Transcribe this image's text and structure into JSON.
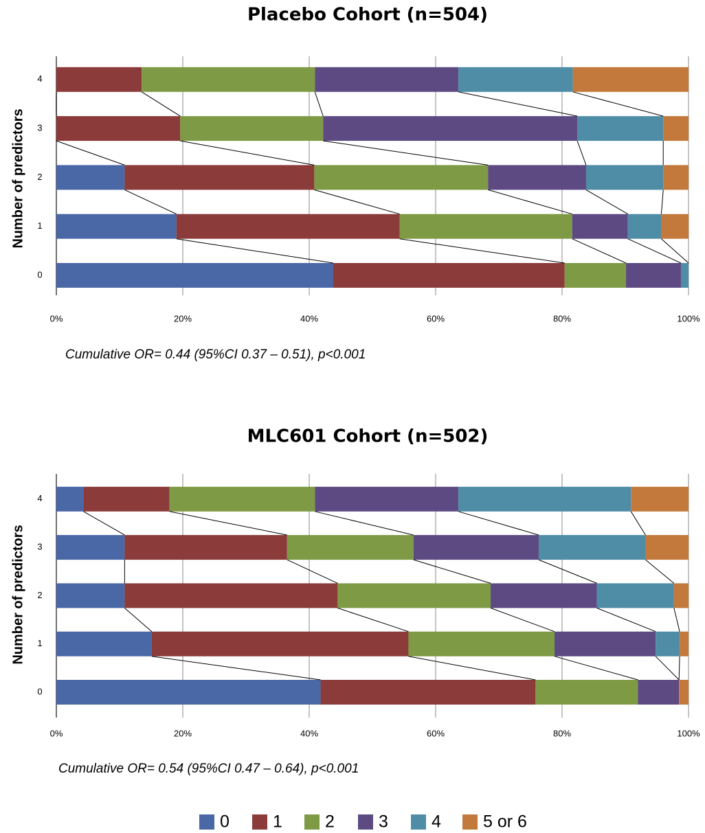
{
  "chart_data": [
    {
      "type": "stacked-bar-100",
      "title": "Placebo Cohort (n=504)",
      "y_label": "Number of predictors",
      "annotation": "Cumulative OR= 0.44 (95%CI 0.37 – 0.51), p<0.001",
      "categories": [
        "0",
        "1",
        "2",
        "3",
        "4"
      ],
      "series": [
        {
          "name": "0",
          "color": "#4a67a6",
          "values": [
            43.8,
            19.0,
            10.8,
            0,
            0
          ]
        },
        {
          "name": "1",
          "color": "#8a3b3a",
          "values": [
            36.6,
            35.3,
            30.0,
            19.6,
            13.5
          ]
        },
        {
          "name": "2",
          "color": "#7f9a45",
          "values": [
            9.7,
            27.3,
            27.5,
            22.6,
            27.4
          ]
        },
        {
          "name": "3",
          "color": "#5d4a82",
          "values": [
            8.7,
            8.8,
            15.5,
            40.2,
            22.7
          ]
        },
        {
          "name": "4",
          "color": "#4f8ca6",
          "values": [
            1.2,
            5.3,
            12.2,
            13.6,
            18.1
          ]
        },
        {
          "name": "5 or 6",
          "color": "#c2793b",
          "values": [
            0,
            4.3,
            4.0,
            4.0,
            18.3
          ]
        }
      ],
      "xlim": [
        0,
        100
      ],
      "xticks": [
        {
          "value": 0,
          "label": "0%"
        },
        {
          "value": 20,
          "label": "20%"
        },
        {
          "value": 40,
          "label": "40%"
        },
        {
          "value": 60,
          "label": "60%"
        },
        {
          "value": 80,
          "label": "80%"
        },
        {
          "value": 100,
          "label": "100%"
        }
      ],
      "grid": true
    },
    {
      "type": "stacked-bar-100",
      "title": "MLC601 Cohort (n=502)",
      "y_label": "Number of predictors",
      "annotation": "Cumulative OR= 0.54 (95%CI 0.47 – 0.64), p<0.001",
      "categories": [
        "0",
        "1",
        "2",
        "3",
        "4"
      ],
      "series": [
        {
          "name": "0",
          "color": "#4a67a6",
          "values": [
            41.8,
            15.1,
            10.8,
            10.8,
            4.3
          ]
        },
        {
          "name": "1",
          "color": "#8a3b3a",
          "values": [
            34.0,
            40.6,
            33.7,
            25.7,
            13.6
          ]
        },
        {
          "name": "2",
          "color": "#7f9a45",
          "values": [
            16.2,
            23.1,
            24.2,
            20.0,
            23.0
          ]
        },
        {
          "name": "3",
          "color": "#5d4a82",
          "values": [
            6.5,
            16.0,
            16.8,
            19.8,
            22.7
          ]
        },
        {
          "name": "4",
          "color": "#4f8ca6",
          "values": [
            0,
            3.8,
            12.2,
            16.9,
            27.3
          ]
        },
        {
          "name": "5 or 6",
          "color": "#c2793b",
          "values": [
            1.5,
            1.4,
            2.3,
            6.8,
            9.1
          ]
        }
      ],
      "xlim": [
        0,
        100
      ],
      "xticks": [
        {
          "value": 0,
          "label": "0%"
        },
        {
          "value": 20,
          "label": "20%"
        },
        {
          "value": 40,
          "label": "40%"
        },
        {
          "value": 60,
          "label": "60%"
        },
        {
          "value": 80,
          "label": "80%"
        },
        {
          "value": 100,
          "label": "100%"
        }
      ],
      "grid": true
    }
  ]
}
